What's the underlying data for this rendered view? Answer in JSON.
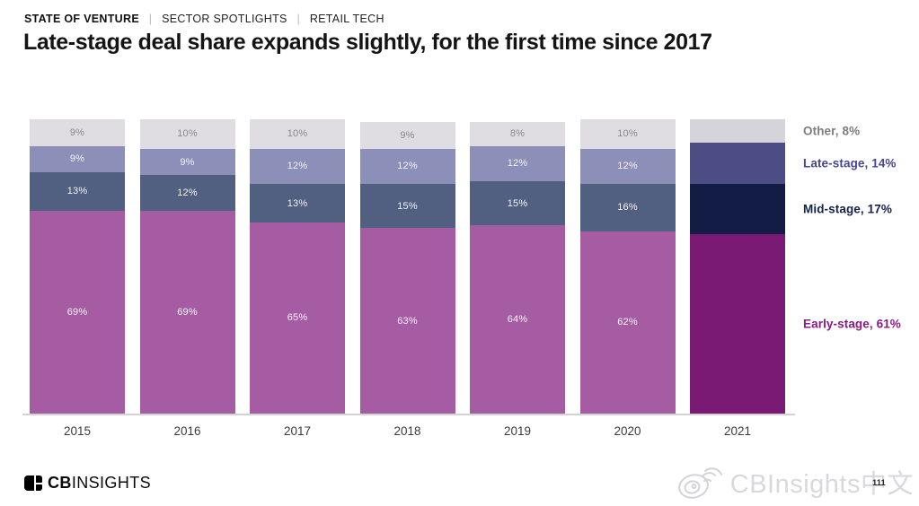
{
  "header": {
    "eyebrow": [
      "STATE OF VENTURE",
      "SECTOR SPOTLIGHTS",
      "RETAIL TECH"
    ],
    "separator": "|",
    "title": "Late-stage deal share expands slightly, for the first time since 2017"
  },
  "chart_data": {
    "type": "bar",
    "variant": "stacked-100-percent-column",
    "categories": [
      "2015",
      "2016",
      "2017",
      "2018",
      "2019",
      "2020",
      "2021"
    ],
    "series": [
      {
        "name": "Early-stage",
        "values": [
          69,
          69,
          65,
          63,
          64,
          62,
          61
        ]
      },
      {
        "name": "Mid-stage",
        "values": [
          13,
          12,
          13,
          15,
          15,
          16,
          17
        ]
      },
      {
        "name": "Late-stage",
        "values": [
          9,
          9,
          12,
          12,
          12,
          12,
          14
        ]
      },
      {
        "name": "Other",
        "values": [
          9,
          10,
          10,
          9,
          8,
          10,
          8
        ]
      }
    ],
    "highlight_category": "2021",
    "segment_labels_shown_for": [
      "2015",
      "2016",
      "2017",
      "2018",
      "2019",
      "2020"
    ],
    "value_suffix": "%",
    "colors": {
      "normal": {
        "Early-stage": "#a55ca2",
        "Mid-stage": "#51608013",
        "Late-stage": "#8c90b8",
        "Other": "#dfdde1"
      },
      "highlight": {
        "Early-stage": "#7a1a74",
        "Mid-stage": "#131c45",
        "Late-stage": "#4c4d85",
        "Other": "#d5d4da"
      }
    },
    "label_colors": {
      "default": "#f4f2f7",
      "Other": "#8a888d"
    },
    "right_labels": [
      {
        "text": "Other, 8%",
        "series": "Other",
        "color": "#7d7d7d"
      },
      {
        "text": "Late-stage, 14%",
        "series": "Late-stage",
        "color": "#45468c"
      },
      {
        "text": "Mid-stage, 17%",
        "series": "Mid-stage",
        "color": "#13224e"
      },
      {
        "text": "Early-stage, 61%",
        "series": "Early-stage",
        "color": "#8c1a84"
      }
    ],
    "xlabel": "",
    "ylabel": "",
    "ylim": [
      0,
      100
    ],
    "grid": false,
    "legend_position": "right"
  },
  "footer": {
    "logo_bold": "CB",
    "logo_light": "INSIGHTS",
    "watermark": "CBInsights中文",
    "page_number": "111"
  },
  "icons": {
    "logo": "cbinsights-logo-icon",
    "watermark": "weibo-icon"
  }
}
